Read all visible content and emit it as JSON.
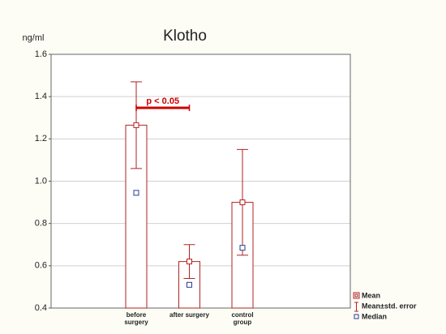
{
  "chart_data": {
    "type": "bar",
    "title": "Klotho",
    "y_label": "ng/ml",
    "categories": [
      "before surgery",
      "after surgery",
      "control group"
    ],
    "series": [
      {
        "name": "Mean",
        "color": "#b22222",
        "values": [
          1.265,
          0.62,
          0.9
        ],
        "errors": [
          0.205,
          0.08,
          0.25
        ]
      },
      {
        "name": "Median",
        "color": "#2a3c8c",
        "values": [
          0.945,
          0.51,
          0.685
        ]
      }
    ],
    "error_label": "Mean±std. error",
    "annotation": "p < 0.05",
    "ylim": [
      0.4,
      1.6
    ],
    "yticks": [
      0.4,
      0.6,
      0.8,
      {
        "value": 1,
        "label": "1.0"
      },
      1.2,
      1.4,
      1.6
    ],
    "grid": true
  }
}
